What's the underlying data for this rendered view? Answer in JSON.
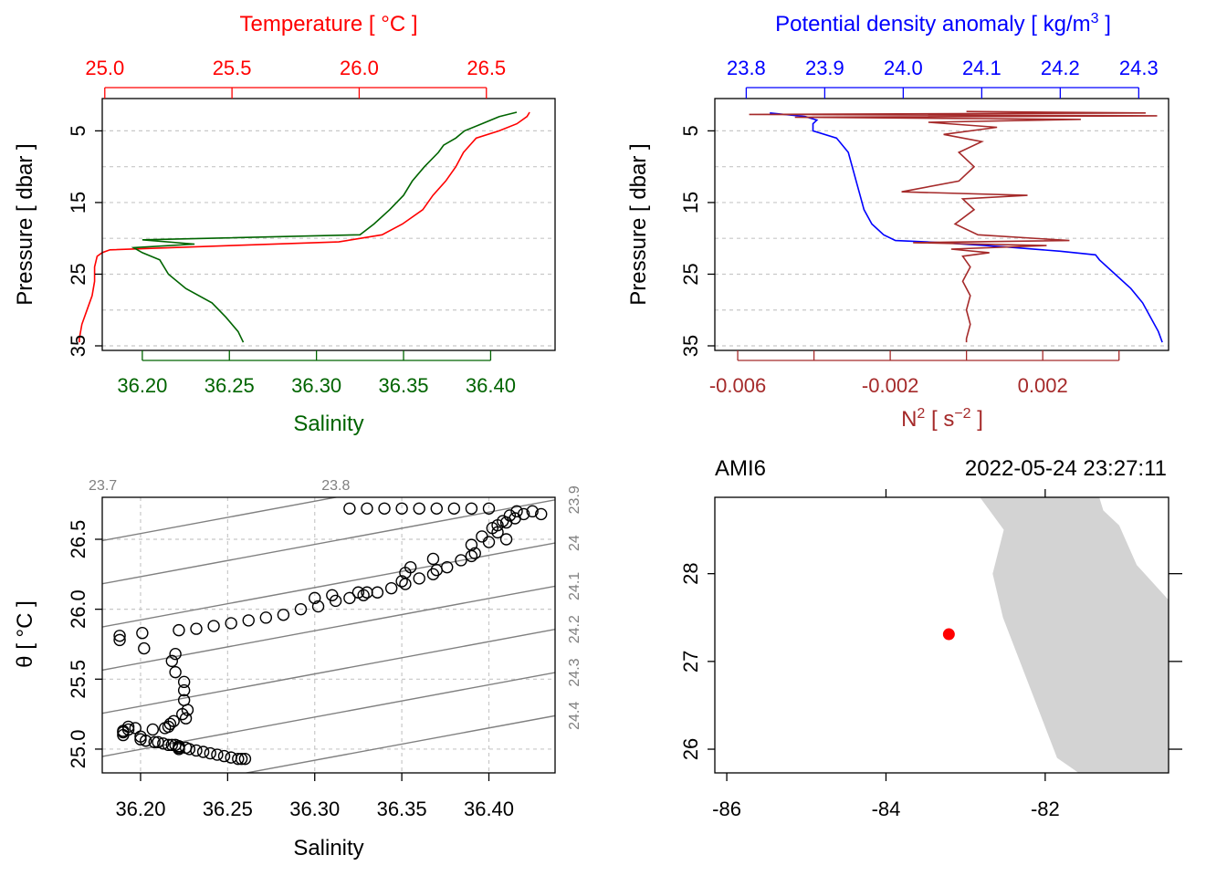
{
  "colors": {
    "temperature": "#ff0000",
    "salinity": "#006400",
    "density": "#0000ff",
    "n2": "#a52a2a",
    "grid": "#c8c8c8",
    "isopycnal": "#808080",
    "land": "#d3d3d3",
    "station": "#ff0000"
  },
  "chart_data": [
    {
      "id": "panel-ts-profile",
      "type": "line",
      "y_axis": {
        "label": "Pressure [ dbar ]",
        "ticks": [
          "5",
          "15",
          "25",
          "35"
        ],
        "range": [
          35,
          1
        ],
        "grid": [
          5,
          10,
          15,
          20,
          25,
          30,
          35
        ]
      },
      "top_axis": {
        "label": "Temperature [ °C ]",
        "ticks": [
          "25.0",
          "25.5",
          "26.0",
          "26.5"
        ],
        "range": [
          24.99,
          26.77
        ]
      },
      "bottom_axis": {
        "label": "Salinity",
        "ticks": [
          "36.20",
          "36.25",
          "36.30",
          "36.35",
          "36.40"
        ],
        "range": [
          36.177,
          36.437
        ]
      },
      "series": [
        {
          "name": "Temperature",
          "pressure": [
            2.4,
            3,
            4,
            5,
            6,
            8,
            10,
            12,
            14,
            16,
            18,
            19.5,
            20.5,
            21,
            21.6,
            22,
            22.5,
            24,
            26,
            28,
            30,
            32,
            34,
            34.5
          ],
          "values": [
            26.67,
            26.66,
            26.62,
            26.55,
            26.46,
            26.41,
            26.38,
            26.34,
            26.29,
            26.25,
            26.17,
            26.09,
            25.92,
            25.5,
            25.02,
            24.99,
            24.97,
            24.96,
            24.96,
            24.95,
            24.93,
            24.91,
            24.9,
            24.9
          ]
        },
        {
          "name": "Salinity",
          "pressure": [
            2.4,
            3,
            4,
            5,
            6,
            7,
            8,
            10,
            12,
            14,
            16,
            18,
            19.5,
            20.2,
            20.8,
            21.3,
            22,
            23,
            25,
            27,
            29,
            31,
            33,
            34.5
          ],
          "values": [
            36.415,
            36.405,
            36.395,
            36.385,
            36.38,
            36.373,
            36.37,
            36.362,
            36.355,
            36.35,
            36.342,
            36.333,
            36.325,
            36.2,
            36.23,
            36.195,
            36.2,
            36.21,
            36.215,
            36.225,
            36.24,
            36.248,
            36.255,
            36.258
          ]
        }
      ]
    },
    {
      "id": "panel-density-profile",
      "type": "line",
      "y_axis": {
        "label": "Pressure [ dbar ]",
        "ticks": [
          "5",
          "15",
          "25",
          "35"
        ],
        "range": [
          35,
          1
        ],
        "grid": [
          5,
          10,
          15,
          20,
          25,
          30,
          35
        ]
      },
      "top_axis": {
        "label": "Potential density anomaly [ kg/m",
        "label_sup": "3",
        "label_tail": " ]",
        "ticks": [
          "23.8",
          "23.9",
          "24.0",
          "24.1",
          "24.2",
          "24.3"
        ],
        "range": [
          23.76,
          24.338
        ]
      },
      "bottom_axis": {
        "label": "N",
        "label_sup": "2",
        "label_tail": " [ s",
        "label_sup2": "−2",
        "label_end": " ]",
        "ticks": [
          "-0.006",
          "-0.002",
          "0.002"
        ],
        "range": [
          -0.0066,
          0.0053
        ]
      },
      "series": [
        {
          "name": "Potential density anomaly",
          "pressure": [
            2.5,
            3,
            3.5,
            4,
            5,
            6,
            8,
            10,
            12,
            14,
            16,
            18,
            19.5,
            20.3,
            20.6,
            21.2,
            21.8,
            22.3,
            23,
            25,
            27,
            29,
            31,
            33,
            34.5
          ],
          "values": [
            23.83,
            23.875,
            23.89,
            23.885,
            23.885,
            23.915,
            23.93,
            23.935,
            23.94,
            23.945,
            23.95,
            23.96,
            23.975,
            23.99,
            24.05,
            24.13,
            24.2,
            24.245,
            24.25,
            24.27,
            24.29,
            24.305,
            24.315,
            24.325,
            24.33
          ]
        },
        {
          "name": "N2",
          "pressure": [
            2.3,
            2.5,
            2.7,
            2.9,
            3.1,
            3.4,
            3.8,
            4.5,
            5.5,
            6.5,
            8,
            10,
            12,
            13.5,
            14,
            14.5,
            16,
            18,
            19.5,
            20.3,
            20.6,
            21,
            21.5,
            22,
            22.5,
            24,
            26,
            28,
            30,
            32,
            34,
            34.5
          ],
          "values": [
            0,
            0.0047,
            -0.0057,
            0.005,
            -0.0045,
            0.003,
            -0.001,
            0.0008,
            -0.0006,
            0.0004,
            -0.0002,
            0.0002,
            -0.0002,
            -0.0017,
            0.0016,
            -0.0001,
            0.0002,
            -0.0003,
            0.0003,
            0.0027,
            -0.0014,
            0.0021,
            -0.0004,
            0.0006,
            -0.0001,
            0.0001,
            -0.0001,
            0.0001,
            0,
            0.0001,
            0,
            0
          ]
        }
      ]
    },
    {
      "id": "panel-ts-diagram",
      "type": "scatter",
      "x_axis": {
        "label": "Salinity",
        "ticks": [
          "36.20",
          "36.25",
          "36.30",
          "36.35",
          "36.40"
        ],
        "range": [
          36.178,
          36.438
        ]
      },
      "y_axis": {
        "label": "θ [ °C ]",
        "ticks": [
          "25.0",
          "25.5",
          "26.0",
          "26.5"
        ],
        "range": [
          24.83,
          26.8
        ]
      },
      "isopycnals": {
        "levels": [
          23.7,
          23.8,
          23.9,
          24.0,
          24.1,
          24.2,
          24.3,
          24.4
        ],
        "labels": [
          "23.7",
          "23.8",
          "23.9",
          "24",
          "24.1",
          "24.2",
          "24.3",
          "24.4"
        ]
      },
      "points": {
        "S": [
          36.188,
          36.188,
          36.19,
          36.19,
          36.19,
          36.193,
          36.193,
          36.197,
          36.2,
          36.2,
          36.203,
          36.208,
          36.21,
          36.213,
          36.216,
          36.22,
          36.222,
          36.222,
          36.222,
          36.22,
          36.218,
          36.22,
          36.225,
          36.225,
          36.225,
          36.227,
          36.224,
          36.226,
          36.219,
          36.217,
          36.216,
          36.214,
          36.207,
          36.218,
          36.222,
          36.226,
          36.228,
          36.232,
          36.236,
          36.24,
          36.244,
          36.248,
          36.252,
          36.256,
          36.258,
          36.26,
          36.201,
          36.202,
          36.222,
          36.232,
          36.242,
          36.252,
          36.262,
          36.272,
          36.282,
          36.292,
          36.302,
          36.312,
          36.32,
          36.328,
          36.336,
          36.344,
          36.352,
          36.36,
          36.368,
          36.376,
          36.384,
          36.392,
          36.4,
          36.405,
          36.41,
          36.415,
          36.42,
          36.425,
          36.43,
          36.32,
          36.33,
          36.34,
          36.35,
          36.36,
          36.37,
          36.38,
          36.39,
          36.4,
          36.33,
          36.35,
          36.37,
          36.39,
          36.41,
          36.3,
          36.31,
          36.325,
          36.352,
          36.355,
          36.368,
          36.39,
          36.396,
          36.402,
          36.405,
          36.408,
          36.412,
          36.416
        ],
        "T": [
          25.81,
          25.78,
          25.12,
          25.1,
          25.13,
          25.14,
          25.16,
          25.15,
          25.09,
          25.07,
          25.06,
          25.05,
          25.05,
          25.04,
          25.03,
          25.03,
          25.02,
          25.01,
          25.0,
          25.68,
          25.63,
          25.55,
          25.48,
          25.42,
          25.35,
          25.28,
          25.25,
          25.22,
          25.2,
          25.18,
          25.16,
          25.15,
          25.14,
          25.03,
          25.02,
          25.01,
          25.0,
          24.99,
          24.98,
          24.97,
          24.96,
          24.95,
          24.94,
          24.93,
          24.93,
          24.93,
          25.83,
          25.72,
          25.85,
          25.86,
          25.88,
          25.9,
          25.92,
          25.94,
          25.96,
          26.0,
          26.02,
          26.06,
          26.08,
          26.1,
          26.12,
          26.15,
          26.18,
          26.22,
          26.25,
          26.3,
          26.35,
          26.4,
          26.48,
          26.55,
          26.62,
          26.65,
          26.68,
          26.7,
          26.68,
          26.72,
          26.72,
          26.72,
          26.72,
          26.72,
          26.72,
          26.72,
          26.72,
          26.72,
          26.12,
          26.2,
          26.28,
          26.38,
          26.5,
          26.08,
          26.1,
          26.12,
          26.26,
          26.3,
          26.36,
          26.46,
          26.52,
          26.58,
          26.6,
          26.63,
          26.67,
          26.7
        ]
      }
    },
    {
      "id": "panel-map",
      "type": "map",
      "station_name": "AMI6",
      "timestamp": "2022-05-24 23:27:11",
      "x_axis": {
        "ticks": [
          "-86",
          "-84",
          "-82"
        ],
        "range": [
          -86.15,
          -80.45
        ]
      },
      "y_axis": {
        "ticks": [
          "26",
          "27",
          "28"
        ],
        "range": [
          25.73,
          28.87
        ]
      },
      "station": {
        "lon": -83.21,
        "lat": 27.31
      },
      "land_polygon": {
        "lon": [
          -82.82,
          -81.32,
          -81.27,
          -81.07,
          -80.85,
          -80.45,
          -80.45,
          -81.58,
          -81.85,
          -82.53,
          -82.66,
          -82.52
        ],
        "lat": [
          28.87,
          28.87,
          28.72,
          28.55,
          28.1,
          27.7,
          25.73,
          25.73,
          25.9,
          27.5,
          28.0,
          28.5
        ]
      }
    }
  ]
}
